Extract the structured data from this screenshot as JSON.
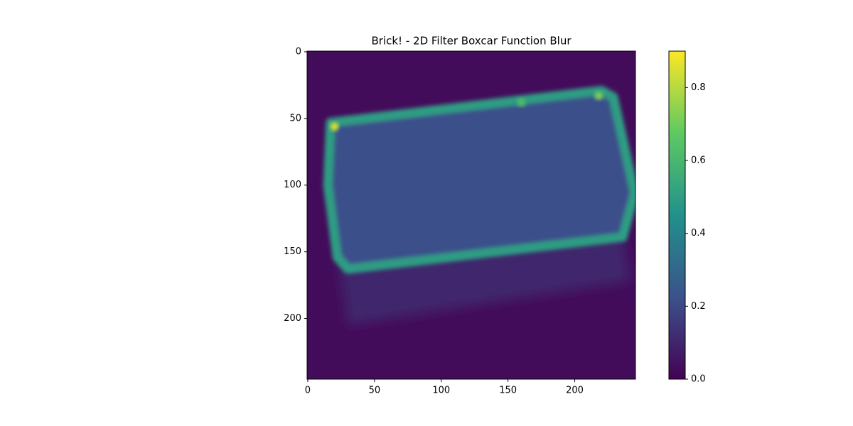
{
  "chart_data": {
    "type": "image",
    "title": "Brick! - 2D Filter Boxcar Function Blur",
    "xlim": [
      -0.5,
      245.5
    ],
    "ylim": [
      245.5,
      -0.5
    ],
    "xticks": [
      0,
      50,
      100,
      150,
      200
    ],
    "yticks": [
      0,
      50,
      100,
      150,
      200
    ],
    "colormap": "viridis",
    "clim": [
      0,
      0.9
    ],
    "colorbar_ticks": [
      {
        "value": 0,
        "label": "0.0"
      },
      0.2,
      0.4,
      0.6,
      0.8
    ],
    "background": 0.03,
    "regions": [
      {
        "value": 0.1,
        "points": [
          [
            22,
            150
          ],
          [
            236,
            138
          ],
          [
            242,
            172
          ],
          [
            30,
            205
          ]
        ]
      },
      {
        "value": 0.22,
        "edge": 0.5,
        "points": [
          [
            17,
            53
          ],
          [
            220,
            29
          ],
          [
            229,
            34
          ],
          [
            245,
            106
          ],
          [
            236,
            139
          ],
          [
            30,
            163
          ],
          [
            22,
            154
          ],
          [
            15,
            100
          ]
        ]
      }
    ],
    "peaks": [
      {
        "x": 20,
        "y": 56,
        "value": 0.85
      },
      {
        "x": 218,
        "y": 33,
        "value": 0.72
      },
      {
        "x": 160,
        "y": 38,
        "value": 0.62
      }
    ]
  }
}
